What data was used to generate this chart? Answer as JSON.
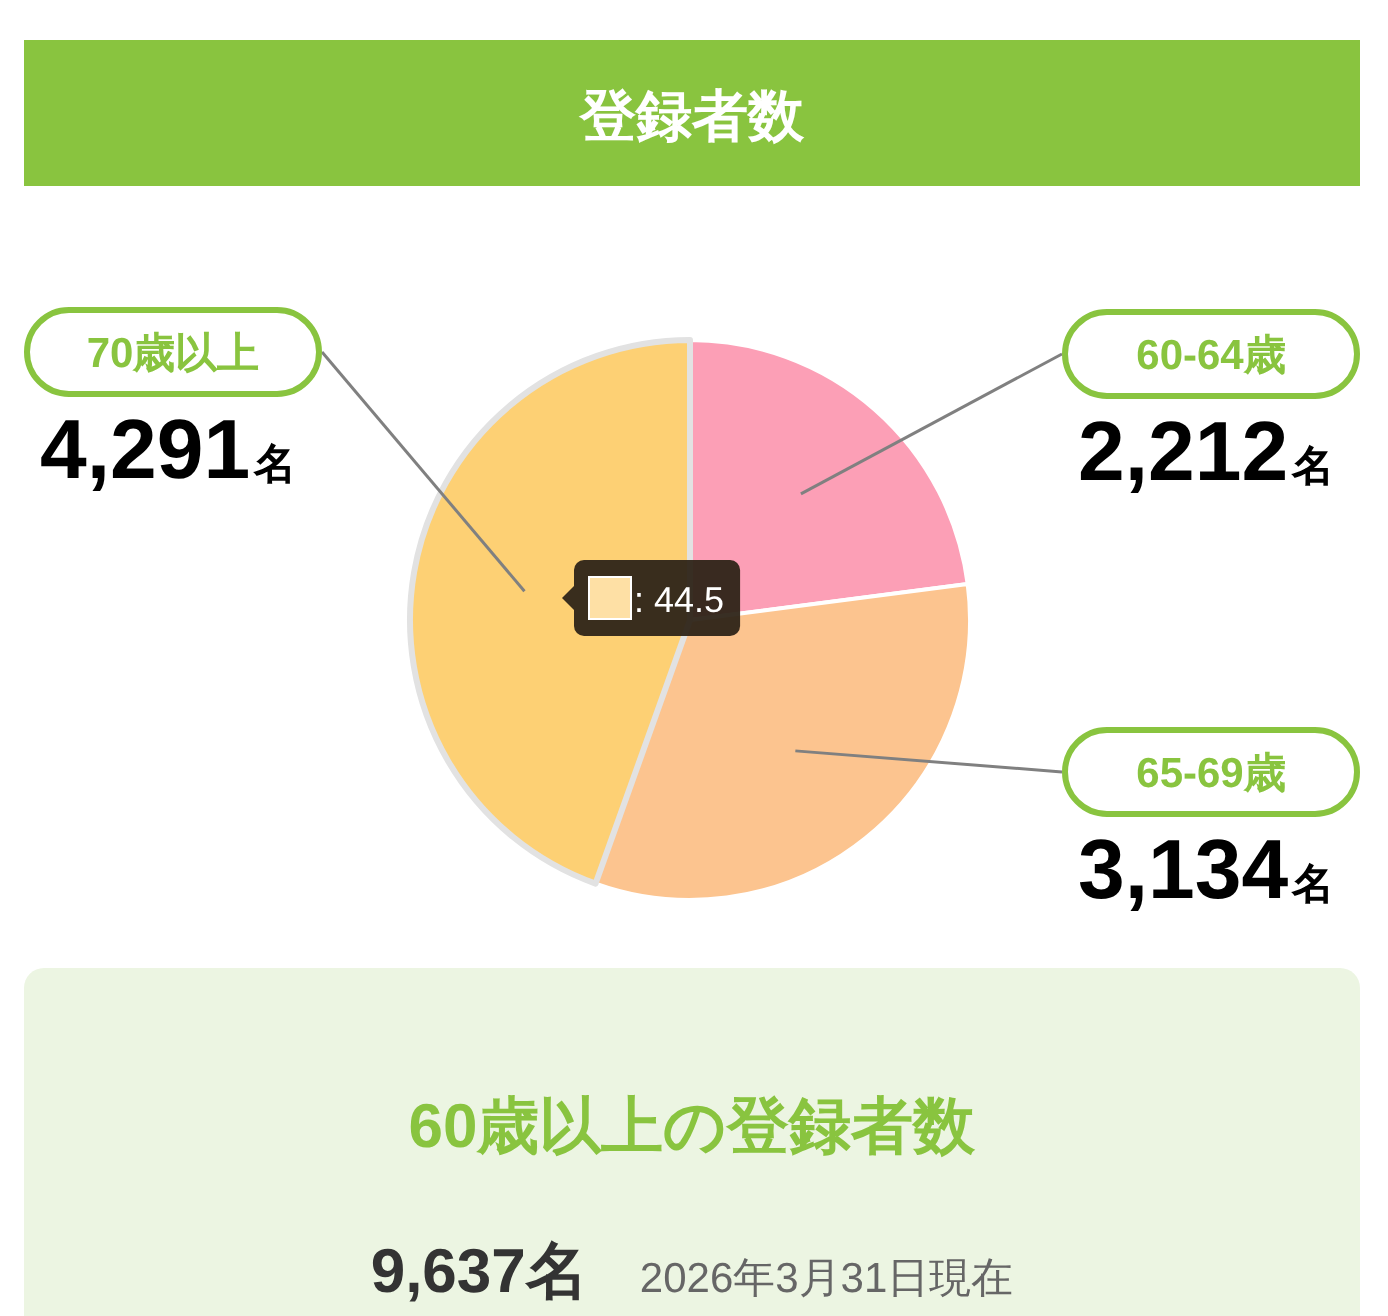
{
  "chart_data": {
    "type": "pie",
    "title": "登録者数",
    "subtitle": "60歳以上の登録者数",
    "categories": [
      "60-64歳",
      "65-69歳",
      "70歳以上"
    ],
    "values": [
      2212,
      3134,
      4291
    ],
    "colors": [
      "#fc9fb6",
      "#fcc48f",
      "#fdd074"
    ],
    "value_labels": [
      "2,212名",
      "3,134名",
      "4,291名"
    ],
    "annotations": [
      {
        "text": ": 44.5",
        "x": "70歳以上"
      },
      "9,637名",
      "2026年3月31日現在"
    ]
  }
}
